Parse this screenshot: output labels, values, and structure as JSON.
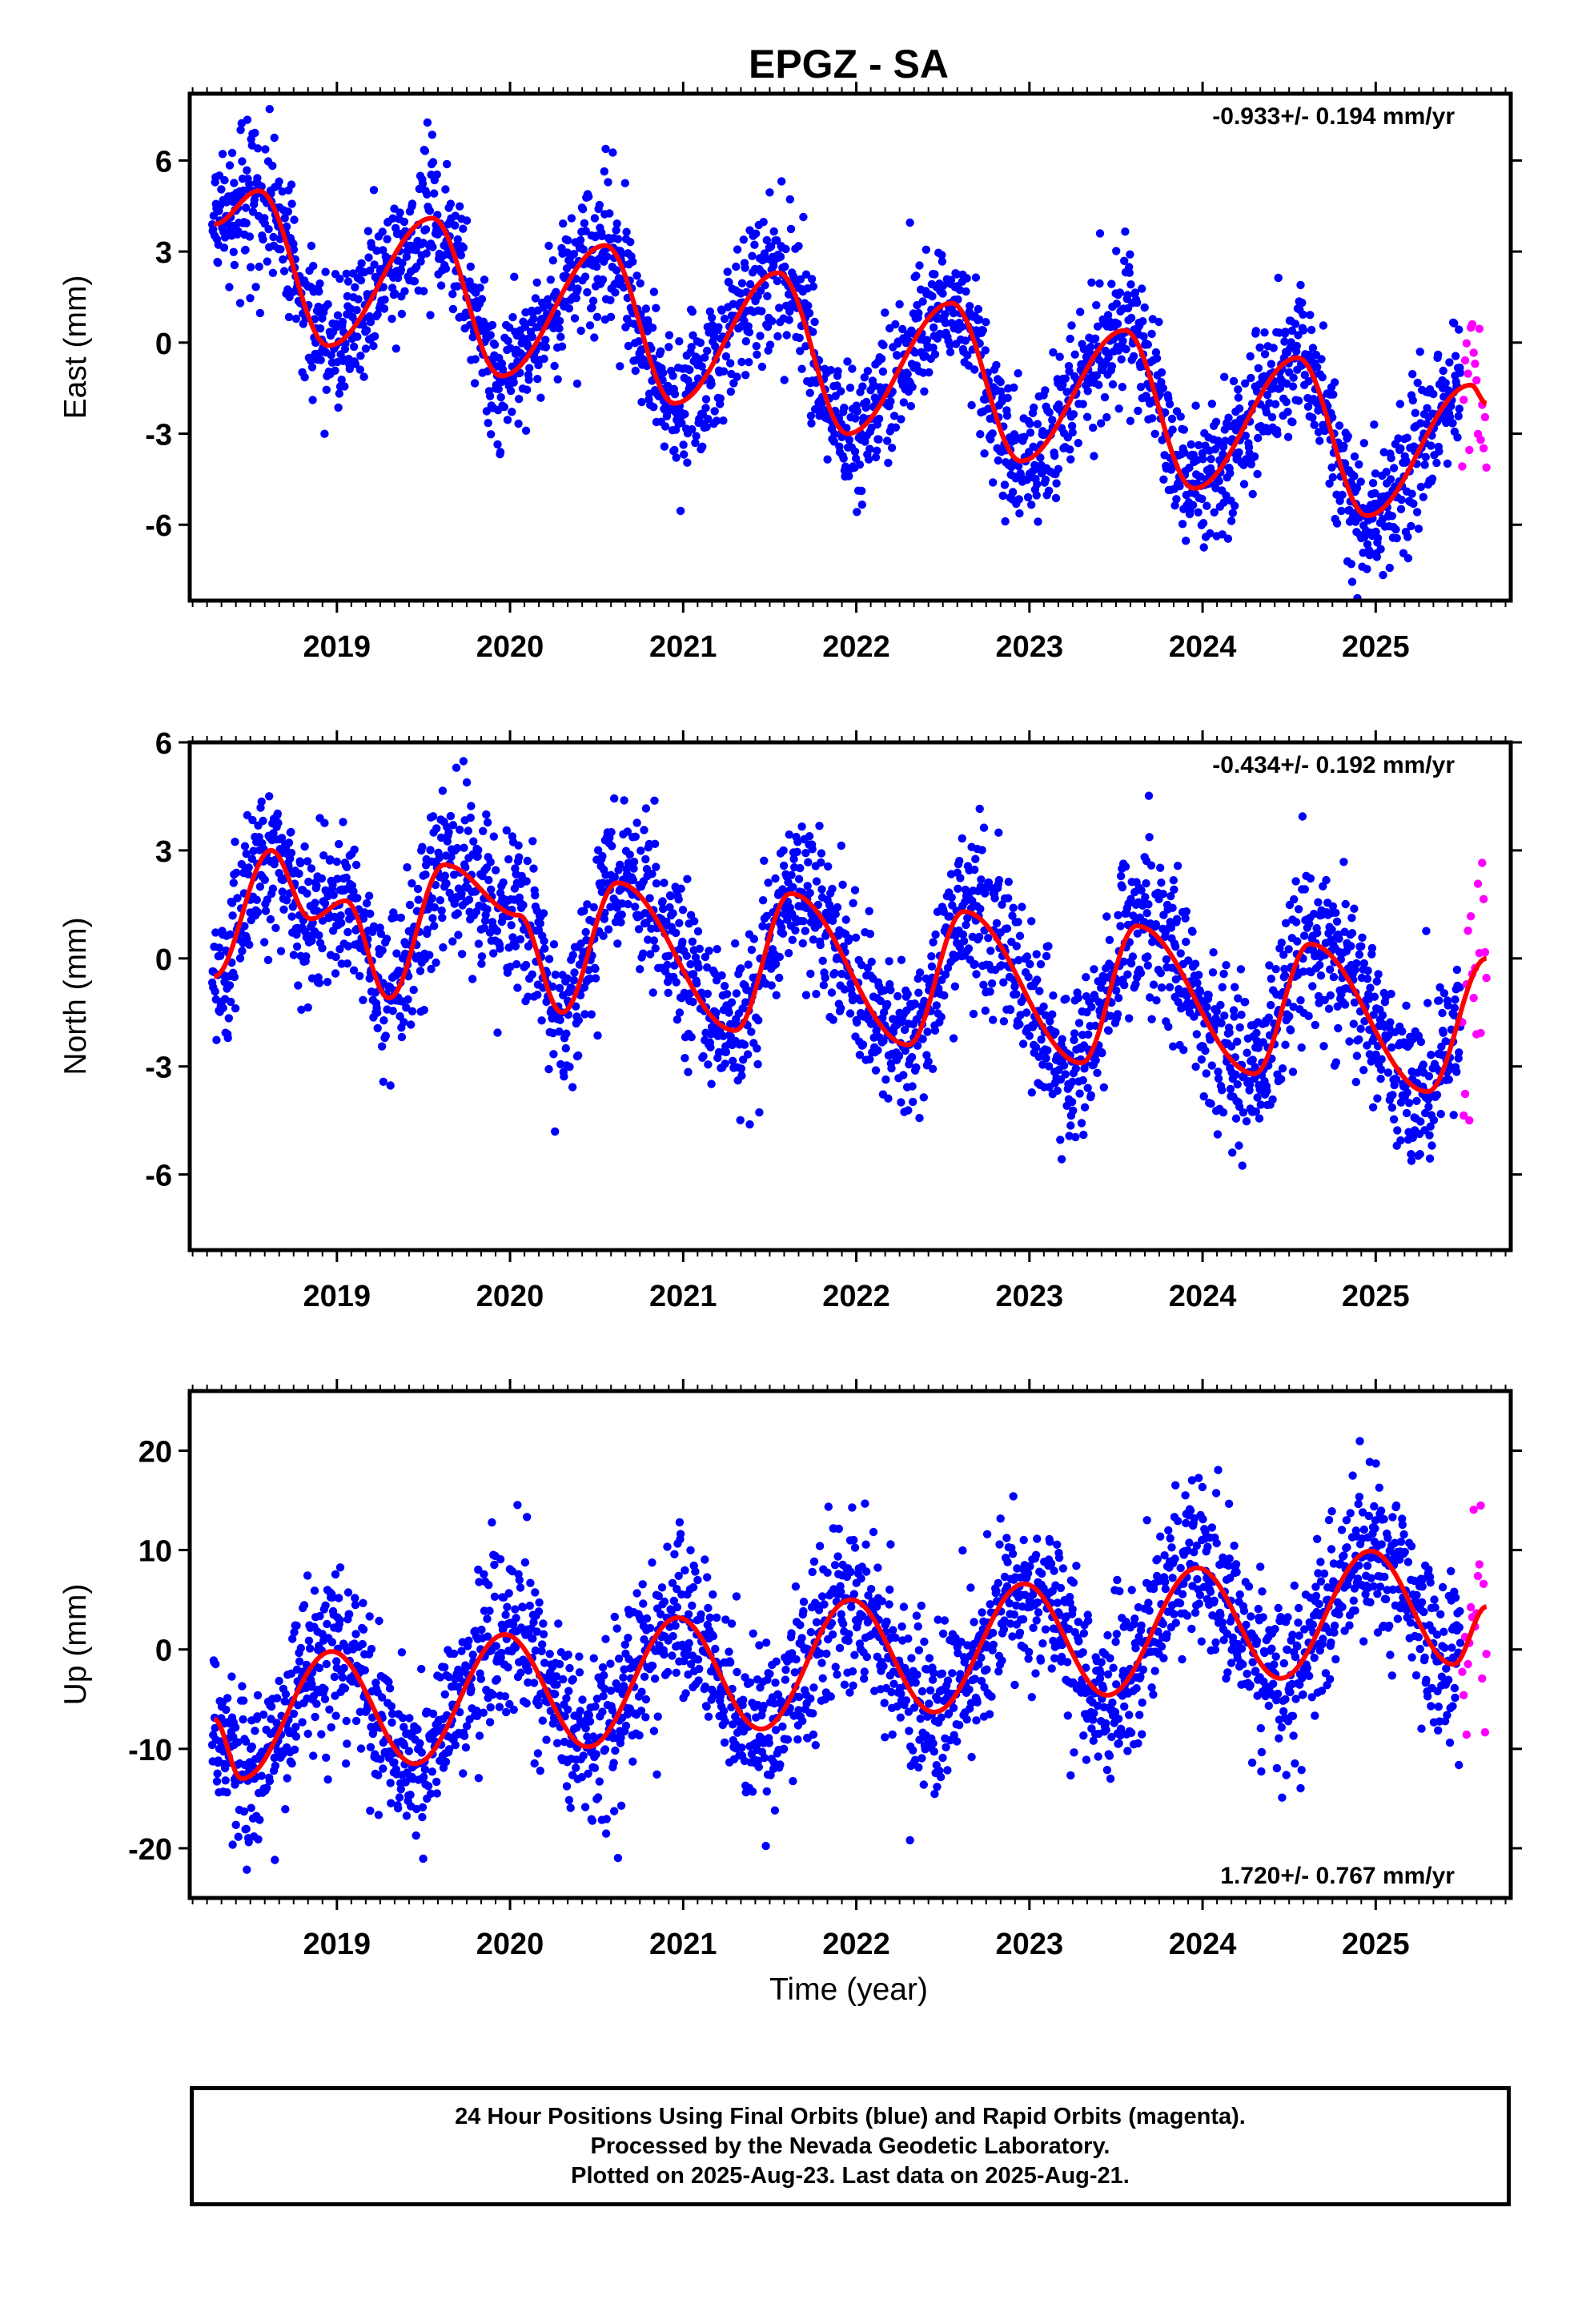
{
  "title": "EPGZ - SA",
  "xlabel": "Time (year)",
  "footer": {
    "line1": "24 Hour Positions Using Final Orbits (blue) and Rapid Orbits (magenta).",
    "line2": "Processed by the Nevada Geodetic Laboratory.",
    "line3": "Plotted on 2025-Aug-23. Last data on 2025-Aug-21."
  },
  "colors": {
    "final": "#0000ff",
    "rapid": "#ff00ff",
    "fit": "#ff0000",
    "axes": "#000000"
  },
  "chart_data": [
    {
      "type": "scatter",
      "component": "east",
      "ylabel": "East (mm)",
      "xlim": [
        2018.15,
        2025.78
      ],
      "ylim": [
        -8.5,
        8.2
      ],
      "yticks": [
        -6,
        -3,
        0,
        3,
        6
      ],
      "xticks": [
        2019,
        2020,
        2021,
        2022,
        2023,
        2024,
        2025
      ],
      "xtick_labels": [
        "2019",
        "2020",
        "2021",
        "2022",
        "2023",
        "2024",
        "2025"
      ],
      "rate_label": "-0.933+/- 0.194 mm/yr",
      "rate_position": "top-right",
      "model": {
        "offset": 2.6,
        "rate": -0.933,
        "ref": 2021.5,
        "a1c": 1.1,
        "a1s": 2.4,
        "a2c": 0.2,
        "a2s": -0.3
      },
      "scatter_sd": 1.15,
      "series": [
        {
          "name": "Final Orbits",
          "color": "blue",
          "x_range": [
            2018.28,
            2025.49
          ]
        },
        {
          "name": "Rapid Orbits",
          "color": "magenta",
          "x_range": [
            2025.5,
            2025.64
          ]
        },
        {
          "name": "Fit",
          "color": "red"
        }
      ],
      "key_points": [
        {
          "x": 2018.29,
          "y": 3.9
        },
        {
          "x": 2018.55,
          "y": 5.0
        },
        {
          "x": 2018.95,
          "y": -0.1
        },
        {
          "x": 2019.55,
          "y": 4.1
        },
        {
          "x": 2019.95,
          "y": -1.1
        },
        {
          "x": 2020.55,
          "y": 3.2
        },
        {
          "x": 2020.95,
          "y": -2.0
        },
        {
          "x": 2021.55,
          "y": 2.3
        },
        {
          "x": 2021.95,
          "y": -3.0
        },
        {
          "x": 2022.55,
          "y": 1.3
        },
        {
          "x": 2022.95,
          "y": -3.9
        },
        {
          "x": 2023.55,
          "y": 0.4
        },
        {
          "x": 2023.95,
          "y": -4.8
        },
        {
          "x": 2024.55,
          "y": -0.5
        },
        {
          "x": 2024.95,
          "y": -5.7
        },
        {
          "x": 2025.55,
          "y": -1.4
        },
        {
          "x": 2025.64,
          "y": -2.0
        }
      ]
    },
    {
      "type": "scatter",
      "component": "north",
      "ylabel": "North (mm)",
      "xlim": [
        2018.15,
        2025.78
      ],
      "ylim": [
        -8.1,
        6.0
      ],
      "yticks": [
        -6,
        -3,
        0,
        3,
        6
      ],
      "xticks": [
        2019,
        2020,
        2021,
        2022,
        2023,
        2024,
        2025
      ],
      "xtick_labels": [
        "2019",
        "2020",
        "2021",
        "2022",
        "2023",
        "2024",
        "2025"
      ],
      "rate_label": "-0.434+/- 0.192 mm/yr",
      "rate_position": "top-right",
      "model": {
        "offset": -0.1,
        "rate": -0.434,
        "ref": 2021.5,
        "a1c": 0.0,
        "a1s": 0.3,
        "a2c": 1.3,
        "a2s": -1.1
      },
      "scatter_sd": 1.1,
      "series": [
        {
          "name": "Final Orbits",
          "color": "blue",
          "x_range": [
            2018.28,
            2025.49
          ]
        },
        {
          "name": "Rapid Orbits",
          "color": "magenta",
          "x_range": [
            2025.5,
            2025.64
          ]
        },
        {
          "name": "Fit",
          "color": "red"
        }
      ],
      "key_points": [
        {
          "x": 2018.29,
          "y": -0.5
        },
        {
          "x": 2018.62,
          "y": 3.0
        },
        {
          "x": 2018.85,
          "y": 1.1
        },
        {
          "x": 2019.05,
          "y": 1.6
        },
        {
          "x": 2019.3,
          "y": -1.1
        },
        {
          "x": 2019.62,
          "y": 2.6
        },
        {
          "x": 2020.05,
          "y": 1.2
        },
        {
          "x": 2020.3,
          "y": -1.5
        },
        {
          "x": 2020.62,
          "y": 2.1
        },
        {
          "x": 2021.3,
          "y": -2.0
        },
        {
          "x": 2021.62,
          "y": 1.8
        },
        {
          "x": 2022.3,
          "y": -2.4
        },
        {
          "x": 2022.62,
          "y": 1.3
        },
        {
          "x": 2023.3,
          "y": -2.9
        },
        {
          "x": 2023.62,
          "y": 0.9
        },
        {
          "x": 2024.3,
          "y": -3.2
        },
        {
          "x": 2024.62,
          "y": 0.4
        },
        {
          "x": 2025.3,
          "y": -3.7
        },
        {
          "x": 2025.64,
          "y": 0.0
        }
      ]
    },
    {
      "type": "scatter",
      "component": "up",
      "ylabel": "Up (mm)",
      "xlim": [
        2018.15,
        2025.78
      ],
      "ylim": [
        -25.0,
        26.0
      ],
      "yticks": [
        -20,
        -10,
        0,
        10,
        20
      ],
      "xticks": [
        2019,
        2020,
        2021,
        2022,
        2023,
        2024,
        2025
      ],
      "xtick_labels": [
        "2019",
        "2020",
        "2021",
        "2022",
        "2023",
        "2024",
        "2025"
      ],
      "rate_label": "1.720+/- 0.767 mm/yr",
      "rate_position": "bottom-right",
      "model": {
        "offset": -1.5,
        "rate": 1.72,
        "ref": 2021.5,
        "a1c": 6.2,
        "a1s": 1.5,
        "a2c": 0.0,
        "a2s": 0.0
      },
      "scatter_sd": 4.2,
      "series": [
        {
          "name": "Final Orbits",
          "color": "blue",
          "x_range": [
            2018.28,
            2025.49
          ]
        },
        {
          "name": "Rapid Orbits",
          "color": "magenta",
          "x_range": [
            2025.5,
            2025.64
          ]
        },
        {
          "name": "Fit",
          "color": "red"
        }
      ],
      "key_points": [
        {
          "x": 2018.29,
          "y": -7.0
        },
        {
          "x": 2018.45,
          "y": -13.0
        },
        {
          "x": 2018.97,
          "y": -0.2
        },
        {
          "x": 2019.45,
          "y": -11.5
        },
        {
          "x": 2019.97,
          "y": 1.5
        },
        {
          "x": 2020.45,
          "y": -9.8
        },
        {
          "x": 2020.97,
          "y": 3.2
        },
        {
          "x": 2021.45,
          "y": -8.0
        },
        {
          "x": 2021.97,
          "y": 5.0
        },
        {
          "x": 2022.45,
          "y": -6.3
        },
        {
          "x": 2022.97,
          "y": 6.6
        },
        {
          "x": 2023.45,
          "y": -4.6
        },
        {
          "x": 2023.97,
          "y": 8.2
        },
        {
          "x": 2024.45,
          "y": -2.9
        },
        {
          "x": 2024.97,
          "y": 9.9
        },
        {
          "x": 2025.45,
          "y": -1.5
        },
        {
          "x": 2025.64,
          "y": 4.3
        }
      ]
    }
  ]
}
